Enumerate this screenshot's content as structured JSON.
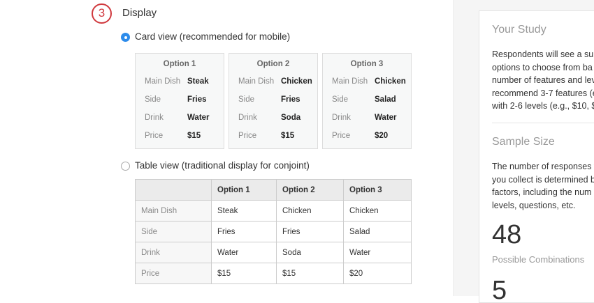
{
  "step_number": "3",
  "section_title": "Display",
  "options": {
    "card_view": {
      "label": "Card view (recommended for mobile)",
      "selected": true
    },
    "table_view": {
      "label": "Table view (traditional display for conjoint)",
      "selected": false
    }
  },
  "attributes": [
    "Main Dish",
    "Side",
    "Drink",
    "Price"
  ],
  "cards": [
    {
      "title": "Option 1",
      "values": [
        "Steak",
        "Fries",
        "Water",
        "$15"
      ]
    },
    {
      "title": "Option 2",
      "values": [
        "Chicken",
        "Fries",
        "Soda",
        "$15"
      ]
    },
    {
      "title": "Option 3",
      "values": [
        "Chicken",
        "Salad",
        "Water",
        "$20"
      ]
    }
  ],
  "sidebar": {
    "study_title": "Your Study",
    "study_lines": [
      "Respondents will see a sub",
      "options to choose from ba",
      "number of features and lev",
      "recommend 3-7 features (e",
      "with 2-6 levels (e.g., $10, $"
    ],
    "sample_title": "Sample Size",
    "sample_lines": [
      "The number of responses w",
      "you collect is determined b",
      "factors, including the num",
      "levels, questions, etc."
    ],
    "combinations_value": "48",
    "combinations_label": "Possible Combinations",
    "next_value": "5"
  },
  "colors": {
    "accent": "#2d8ceb",
    "step": "#d0393e"
  }
}
